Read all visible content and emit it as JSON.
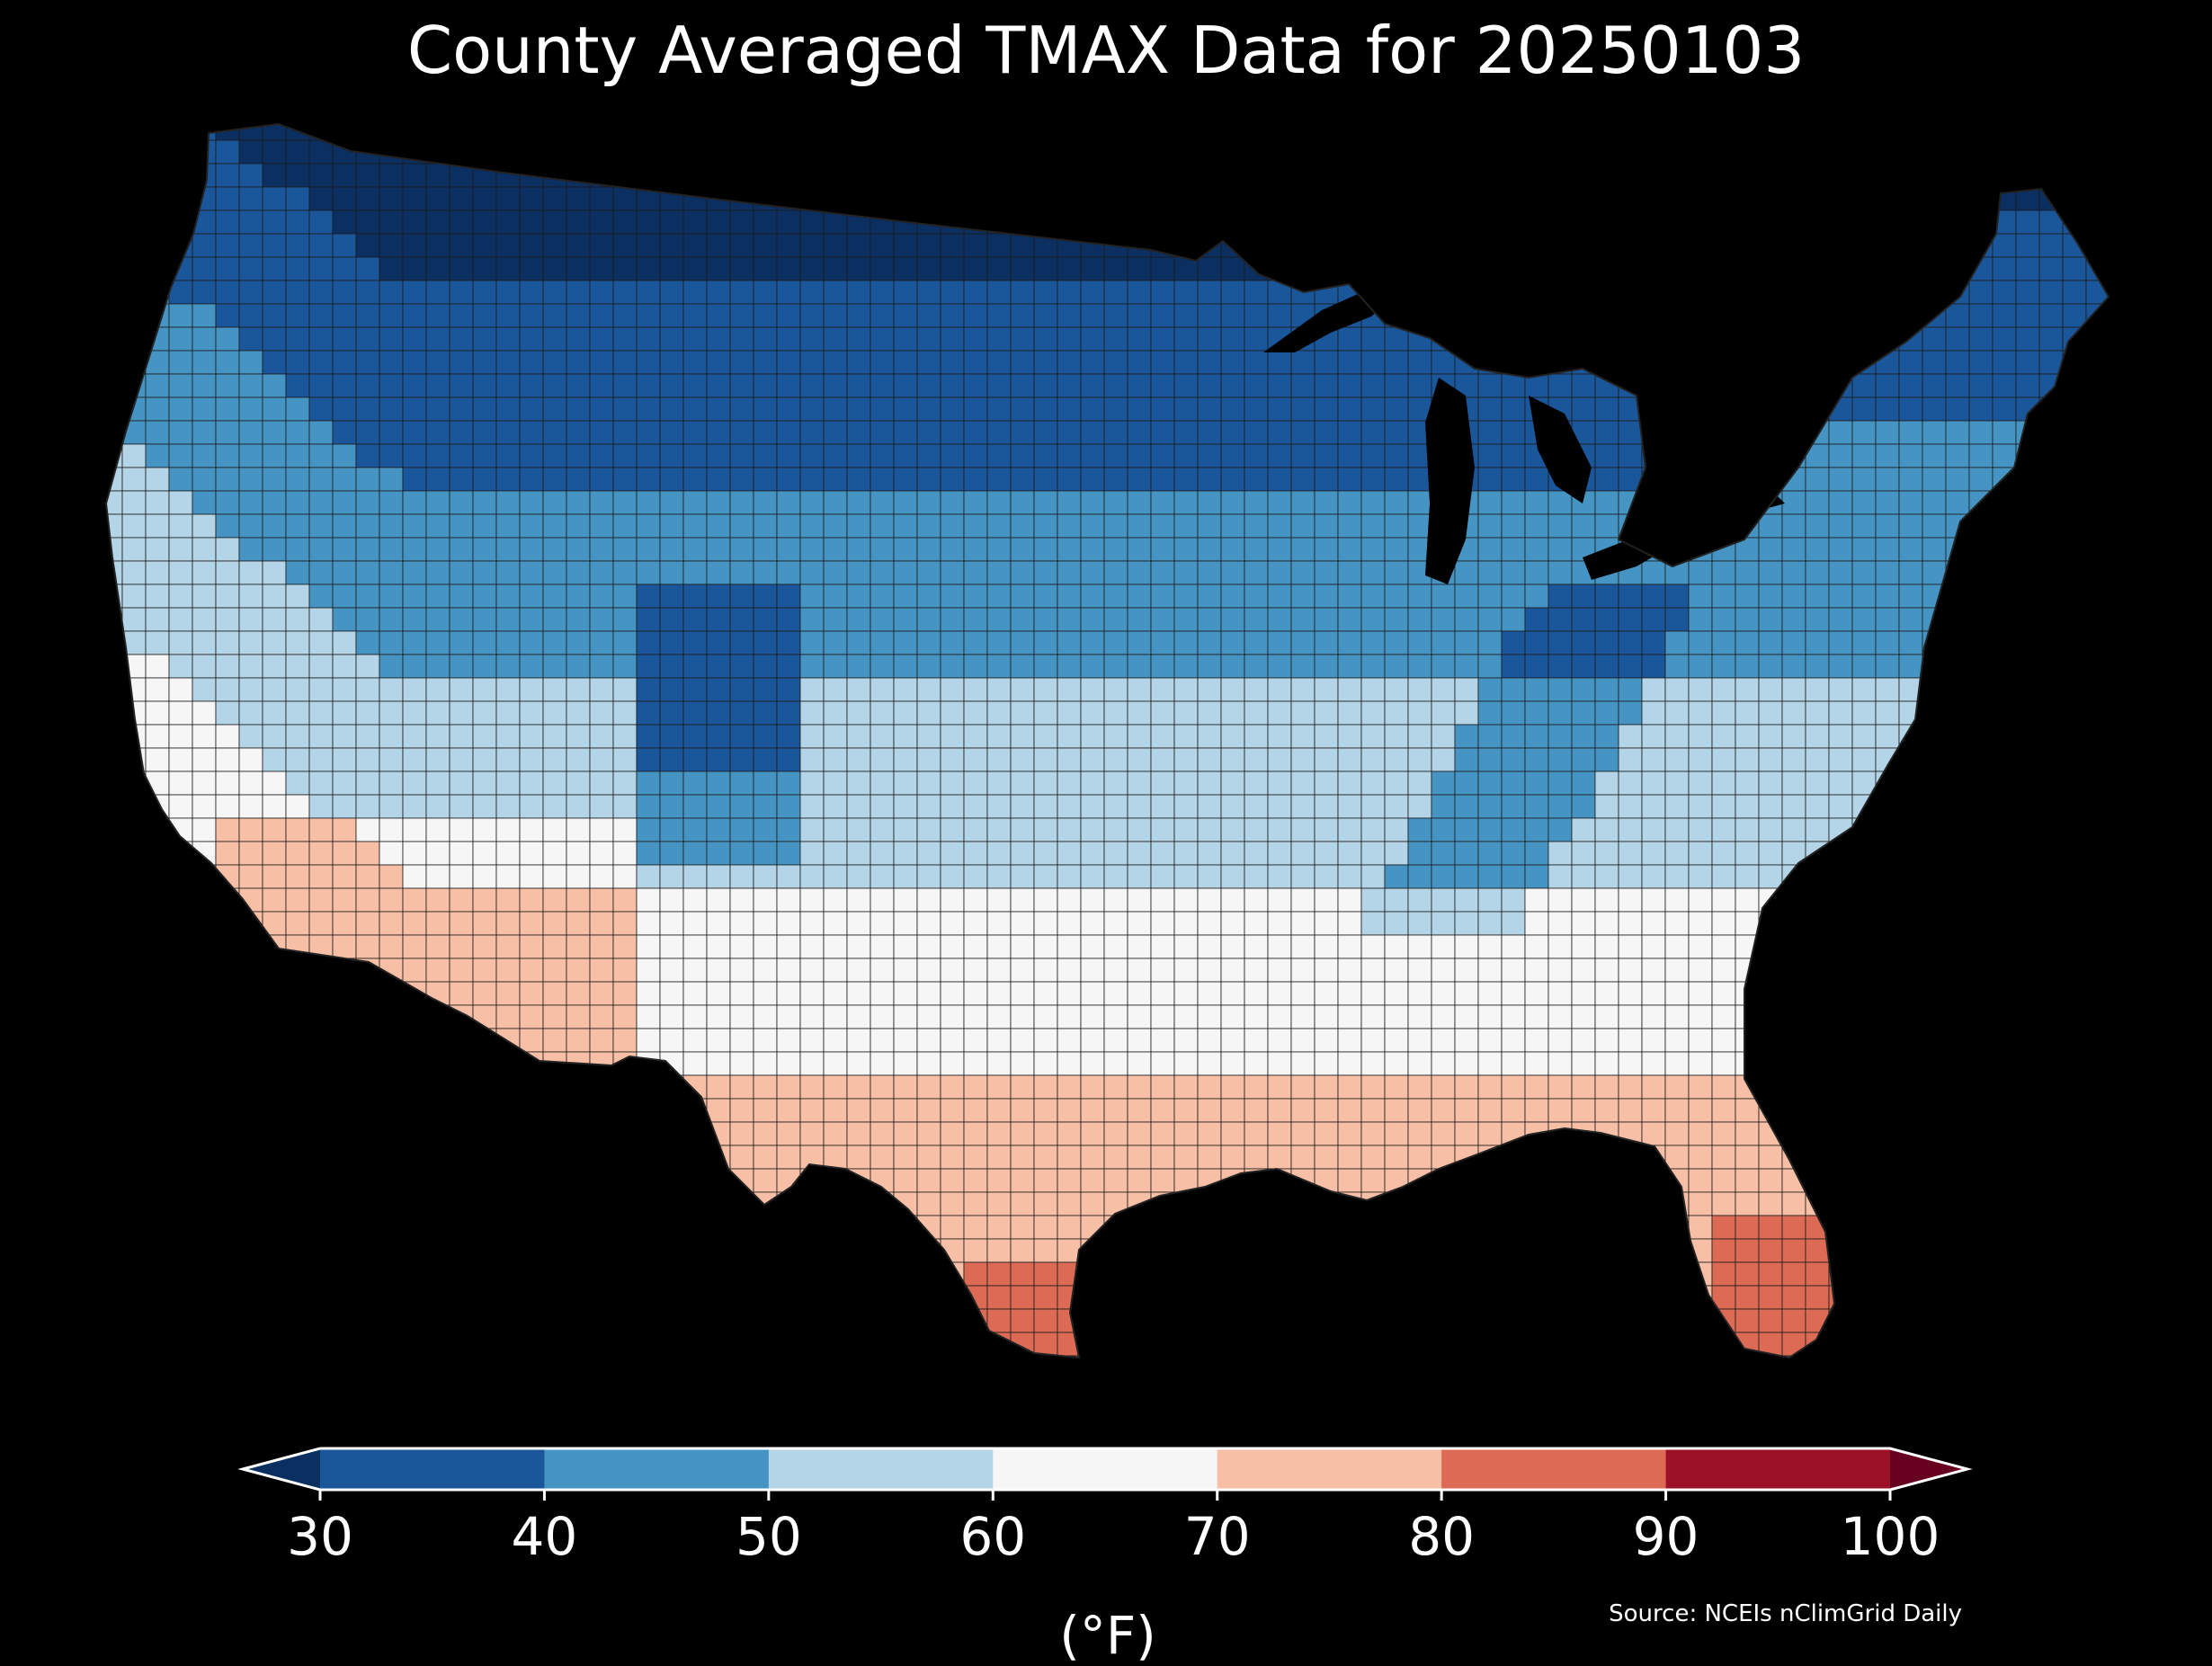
{
  "title": "County Averaged TMAX Data for 20250103",
  "colorbar": {
    "units_label": "(°F)",
    "ticks": [
      "30",
      "40",
      "50",
      "60",
      "70",
      "80",
      "90",
      "100"
    ],
    "bins": [
      {
        "range": [
          30,
          40
        ],
        "color": "#1a569a"
      },
      {
        "range": [
          40,
          50
        ],
        "color": "#4694c4"
      },
      {
        "range": [
          50,
          60
        ],
        "color": "#b4d5e8"
      },
      {
        "range": [
          60,
          70
        ],
        "color": "#f6f6f6"
      },
      {
        "range": [
          70,
          80
        ],
        "color": "#f7bfa6"
      },
      {
        "range": [
          80,
          90
        ],
        "color": "#dc6a55"
      },
      {
        "range": [
          90,
          100
        ],
        "color": "#9c1127"
      }
    ],
    "under_color": "#0b2f61",
    "over_color": "#67001f",
    "extend": "both"
  },
  "source_label": "Source: NCEIs nClimGrid Daily",
  "map_data": {
    "type": "choropleth",
    "region": "Contiguous United States counties",
    "variable": "TMAX",
    "date": "20250103",
    "units": "°F",
    "background_color": "#000000",
    "regional_pattern": [
      {
        "area": "Northern Plains and Upper Midwest",
        "approx_value": 25
      },
      {
        "area": "Great Lakes and Northeast interior",
        "approx_value": 32
      },
      {
        "area": "Pacific Northwest",
        "approx_value": 42
      },
      {
        "area": "Great Basin and Central Plains",
        "approx_value": 52
      },
      {
        "area": "Southeast and Gulf Coast",
        "approx_value": 62
      },
      {
        "area": "Southern California",
        "approx_value": 72
      },
      {
        "area": "Southwest Arizona",
        "approx_value": 76
      },
      {
        "area": "South Texas tip",
        "approx_value": 82
      },
      {
        "area": "South Florida",
        "approx_value": 78
      }
    ]
  }
}
